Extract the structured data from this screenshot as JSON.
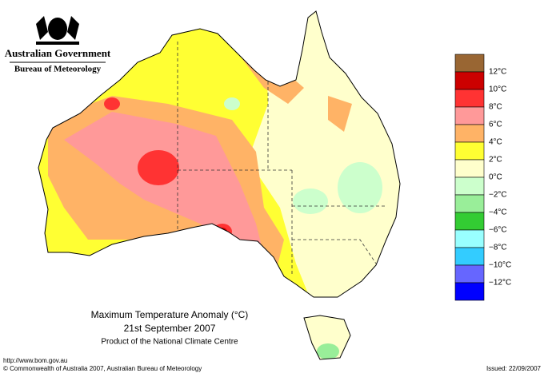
{
  "header": {
    "agency": "Australian Government",
    "bureau": "Bureau of Meteorology"
  },
  "legend": {
    "colors": [
      "#996633",
      "#cc0000",
      "#ff3333",
      "#ff9999",
      "#ffb366",
      "#ffff33",
      "#ffffcc",
      "#ccffcc",
      "#99ee99",
      "#33cc33",
      "#99ffff",
      "#33ccff",
      "#6666ff",
      "#0000ff"
    ],
    "labels": [
      "12°C",
      "10°C",
      "8°C",
      "6°C",
      "4°C",
      "2°C",
      "0°C",
      "−2°C",
      "−4°C",
      "−6°C",
      "−8°C",
      "−10°C",
      "−12°C"
    ]
  },
  "caption": {
    "title": "Maximum Temperature Anomaly (°C)",
    "date": "21st September 2007",
    "product": "Product of the National Climate Centre"
  },
  "footer": {
    "url": "http://www.bom.gov.au",
    "copyright": "© Commonwealth of Australia 2007, Australian Bureau of Meteorology",
    "issued": "Issued: 22/09/2007"
  }
}
